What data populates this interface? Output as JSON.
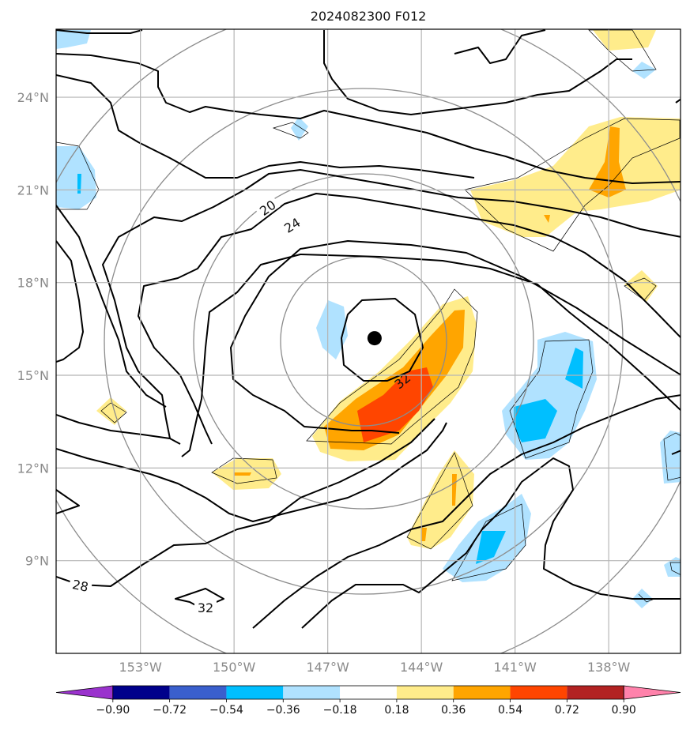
{
  "title": "2024082300 F012",
  "map": {
    "lat_labels": [
      "24°N",
      "21°N",
      "18°N",
      "15°N",
      "12°N",
      "9°N"
    ],
    "lat_values": [
      24,
      21,
      18,
      15,
      12,
      9
    ],
    "lon_labels": [
      "153°W",
      "150°W",
      "147°W",
      "144°W",
      "141°W",
      "138°W"
    ],
    "lon_values": [
      -153,
      -150,
      -147,
      -144,
      -141,
      -138
    ],
    "lon_range": [
      -155.7,
      -135.7
    ],
    "lat_range": [
      6.0,
      26.2
    ],
    "grid": true,
    "storm_center": {
      "lat": 16.2,
      "lon": -145.5
    },
    "contour_labels": [
      "20",
      "24",
      "32",
      "28",
      "32"
    ],
    "gray_rings": true
  },
  "colorbar": {
    "ticks": [
      "−0.90",
      "−0.72",
      "−0.54",
      "−0.36",
      "−0.18",
      "0.18",
      "0.36",
      "0.54",
      "0.72",
      "0.90"
    ],
    "colors": [
      "#9a32cd",
      "#00008b",
      "#3a5fcd",
      "#00bfff",
      "#b0e2ff",
      "#ffffff",
      "#ffec8b",
      "#ffa500",
      "#ff4500",
      "#b22222",
      "#ff82ab"
    ]
  }
}
